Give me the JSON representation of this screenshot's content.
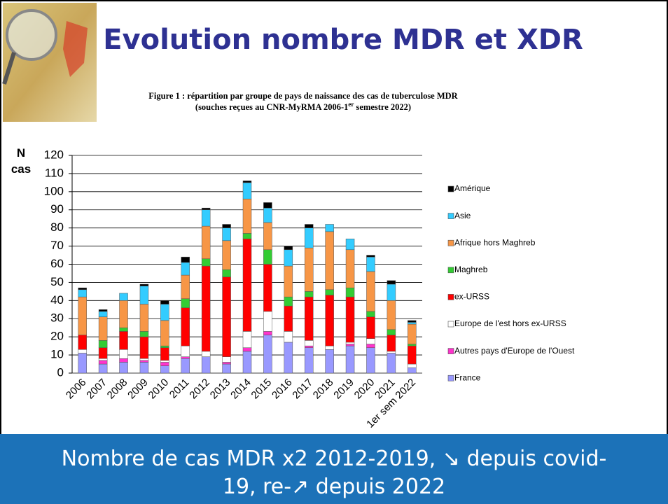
{
  "header": {
    "title": "Evolution nombre MDR et XDR"
  },
  "caption": {
    "line1": "Figure 1 : répartition par groupe de pays de naissance des cas de tuberculose MDR",
    "line2": [
      "(souches reçues au CNR-MyRMA 2006-1",
      "er",
      " semestre 2022)"
    ]
  },
  "chart_data": {
    "type": "stacked-bar",
    "y_label": [
      "N",
      "cas"
    ],
    "categories": [
      "2006",
      "2007",
      "2008",
      "2009",
      "2010",
      "2011",
      "2012",
      "2013",
      "2014",
      "2015",
      "2016",
      "2017",
      "2018",
      "2019",
      "2020",
      "2021",
      "1er sem 2022"
    ],
    "series": [
      {
        "name": "France",
        "color": "#9999ff",
        "values": [
          11,
          5,
          6,
          6,
          4,
          8,
          9,
          5,
          12,
          21,
          17,
          14,
          13,
          15,
          14,
          11,
          3
        ]
      },
      {
        "name": "Autres pays d'Europe de l'Ouest",
        "color": "#ff33cc",
        "values": [
          0,
          2,
          2,
          1,
          2,
          1,
          0,
          1,
          2,
          2,
          0,
          1,
          0,
          1,
          2,
          0,
          0
        ]
      },
      {
        "name": "Europe de l'est hors ex-URSS",
        "color": "#ffffff",
        "values": [
          2,
          1,
          5,
          1,
          1,
          6,
          3,
          3,
          9,
          11,
          6,
          3,
          2,
          1,
          3,
          1,
          2
        ]
      },
      {
        "name": "ex-URSS",
        "color": "#ff0000",
        "values": [
          8,
          6,
          10,
          12,
          7,
          21,
          47,
          44,
          51,
          26,
          14,
          24,
          28,
          25,
          12,
          9,
          10
        ]
      },
      {
        "name": "Maghreb",
        "color": "#33cc33",
        "values": [
          0,
          4,
          2,
          3,
          1,
          5,
          4,
          4,
          3,
          8,
          5,
          3,
          3,
          5,
          3,
          3,
          1
        ]
      },
      {
        "name": "Afrique hors Maghreb",
        "color": "#f79646",
        "values": [
          21,
          13,
          15,
          15,
          14,
          13,
          18,
          16,
          19,
          15,
          17,
          24,
          32,
          21,
          22,
          16,
          11
        ]
      },
      {
        "name": "Asie",
        "color": "#33ccff",
        "values": [
          4,
          3,
          4,
          10,
          9,
          7,
          9,
          7,
          9,
          8,
          9,
          11,
          4,
          6,
          8,
          9,
          1
        ]
      },
      {
        "name": "Amérique",
        "color": "#000000",
        "values": [
          1,
          1,
          0,
          1,
          2,
          3,
          1,
          2,
          1,
          3,
          2,
          2,
          0,
          0,
          1,
          2,
          1
        ]
      }
    ],
    "ylim": [
      0,
      120
    ],
    "yticks": [
      0,
      10,
      20,
      30,
      40,
      50,
      60,
      70,
      80,
      90,
      100,
      110,
      120
    ],
    "grid": true,
    "legend": "right"
  },
  "banner": [
    "Nombre de cas MDR x2 2012-2019, ↘ depuis covid-",
    "19, re-↗ depuis 2022"
  ]
}
